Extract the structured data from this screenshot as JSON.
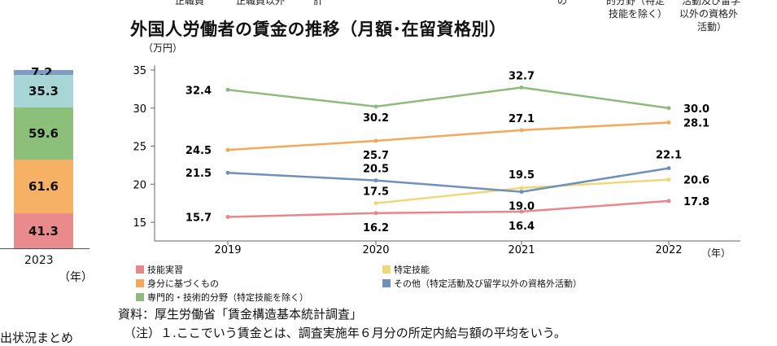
{
  "top_fragments": [
    "正職員",
    "正職員以外",
    "計",
    "の",
    "的分野（特定",
    "活動及び留学",
    "技能を除く）",
    "以外の資格外",
    "活動）"
  ],
  "left_bar": {
    "year": "2023",
    "unit": "（年）",
    "segments": [
      {
        "value": "7.2",
        "color": "#7f9cc4"
      },
      {
        "value": "35.3",
        "color": "#a8d6d6"
      },
      {
        "value": "59.6",
        "color": "#8cc07a"
      },
      {
        "value": "61.6",
        "color": "#f6b164"
      },
      {
        "value": "41.3",
        "color": "#e98b8c"
      }
    ]
  },
  "chart_data": {
    "type": "line",
    "title": "外国人労働者の賃金の推移（月額･在留資格別）",
    "ylabel": "（万円）",
    "xlabel": "（年）",
    "categories": [
      "2019",
      "2020",
      "2021",
      "2022"
    ],
    "ylim": [
      12.5,
      35
    ],
    "yticks": [
      15,
      20,
      25,
      30,
      35
    ],
    "grid": false,
    "legend_position": "bottom",
    "series": [
      {
        "name": "技能実習",
        "color": "#e8868a",
        "values": [
          15.7,
          16.2,
          16.4,
          17.8
        ]
      },
      {
        "name": "特定技能",
        "color": "#f0d878",
        "values": [
          null,
          17.5,
          19.5,
          20.6
        ]
      },
      {
        "name": "身分に基づくもの",
        "color": "#f5a85a",
        "values": [
          24.5,
          25.7,
          27.1,
          28.1
        ]
      },
      {
        "name": "その他（特定活動及び留学以外の資格外活動）",
        "color": "#7090bc",
        "values": [
          21.5,
          20.5,
          19.0,
          22.1
        ]
      },
      {
        "name": "専門的・技術的分野（特定技能を除く）",
        "color": "#8dbb7c",
        "values": [
          32.4,
          30.2,
          32.7,
          30.0
        ]
      }
    ]
  },
  "notes": {
    "source": "資料：厚生労働省「賃金構造基本統計調査」",
    "note1": "（注）１.ここでいう賃金とは、調査実施年６月分の所定内給与額の平均をいう。",
    "cut_text": "出状況まとめ"
  }
}
